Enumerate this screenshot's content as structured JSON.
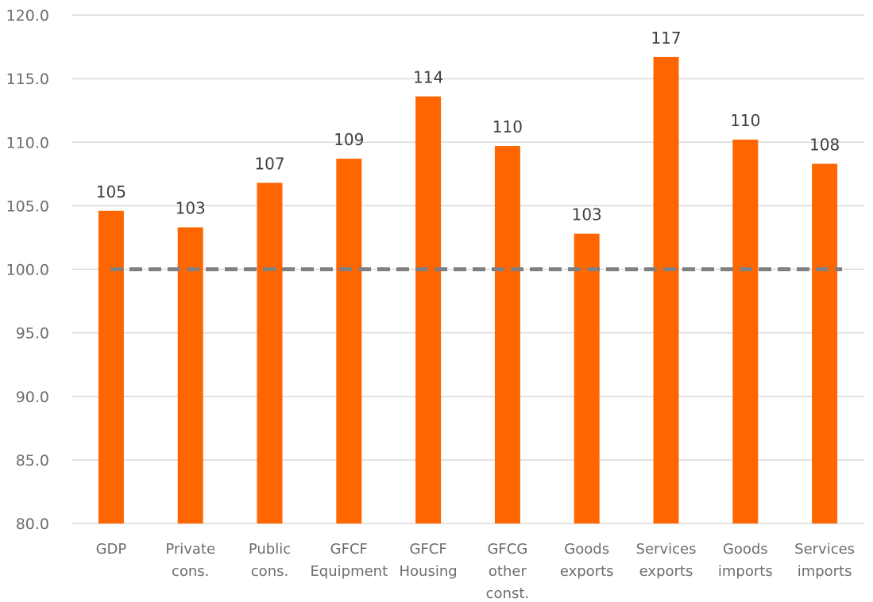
{
  "chart_data": {
    "type": "bar",
    "title": "",
    "xlabel": "",
    "ylabel": "",
    "ylim": [
      80,
      120
    ],
    "yticks": [
      80,
      85,
      90,
      95,
      100,
      105,
      110,
      115,
      120
    ],
    "ytick_labels": [
      "80.0",
      "85.0",
      "90.0",
      "95.0",
      "100.0",
      "105.0",
      "110.0",
      "115.0",
      "120.0"
    ],
    "grid": true,
    "legend": "none",
    "categories": [
      [
        "GDP"
      ],
      [
        "Private",
        "cons."
      ],
      [
        "Public",
        "cons."
      ],
      [
        "GFCF",
        "Equipment"
      ],
      [
        "GFCF",
        "Housing"
      ],
      [
        "GFCG",
        "other",
        "const."
      ],
      [
        "Goods",
        "exports"
      ],
      [
        "Services",
        "exports"
      ],
      [
        "Goods",
        "imports"
      ],
      [
        "Services",
        "imports"
      ]
    ],
    "values": [
      104.6,
      103.3,
      106.8,
      108.7,
      113.6,
      109.7,
      102.8,
      116.7,
      110.2,
      108.3
    ],
    "data_labels": [
      "105",
      "103",
      "107",
      "109",
      "114",
      "110",
      "103",
      "117",
      "110",
      "108"
    ],
    "reference_line": {
      "value": 100,
      "style": "dashed"
    },
    "colors": {
      "bar": "#ff6600",
      "reference_line": "#808080"
    }
  }
}
